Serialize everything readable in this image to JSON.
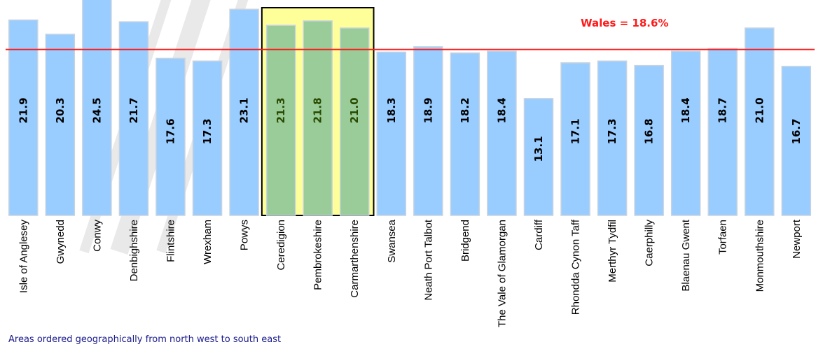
{
  "chart_data": {
    "type": "bar",
    "categories": [
      "Isle of Anglesey",
      "Gwynedd",
      "Conwy",
      "Denbighshire",
      "Flintshire",
      "Wrexham",
      "Powys",
      "Ceredigion",
      "Pembrokeshire",
      "Carmarthenshire",
      "Swansea",
      "Neath  Port Talbot",
      "Bridgend",
      "The Vale of Glamorgan",
      "Cardiff",
      "Rhondda Cynon Taff",
      "Merthyr Tydfil",
      "Caerphilly",
      "Blaenau Gwent",
      "Torfaen",
      "Monmouthshire",
      "Newport"
    ],
    "values": [
      21.9,
      20.3,
      24.5,
      21.7,
      17.6,
      17.3,
      23.1,
      21.3,
      21.8,
      21.0,
      18.3,
      18.9,
      18.2,
      18.4,
      13.1,
      17.1,
      17.3,
      16.8,
      18.4,
      18.7,
      21.0,
      16.7
    ],
    "data_labels": [
      "21.9",
      "20.3",
      "24.5",
      "21.7",
      "17.6",
      "17.3",
      "23.1",
      "21.3",
      "21.8",
      "21.0",
      "18.3",
      "18.9",
      "18.2",
      "18.4",
      "13.1",
      "17.1",
      "17.3",
      "16.8",
      "18.4",
      "18.7",
      "21.0",
      "16.7"
    ],
    "highlighted_categories": [
      "Ceredigion",
      "Pembrokeshire",
      "Carmarthenshire"
    ],
    "reference_line": {
      "label": "Wales = 18.6%",
      "value": 18.6,
      "color": "#ff1a1a"
    },
    "ylim": [
      0,
      23.2
    ],
    "grid": false,
    "legend": "none",
    "title": "",
    "xlabel": "",
    "ylabel": ""
  },
  "colors": {
    "bar": "#99ccff",
    "bar_stroke": "#c7d3df",
    "highlight_bar": "#99cc99",
    "highlight_box": "#ffff99",
    "reference_line": "#ff1a1a",
    "footnote": "#1a1a8c"
  },
  "footnote": "Areas ordered geographically from north west to south east"
}
